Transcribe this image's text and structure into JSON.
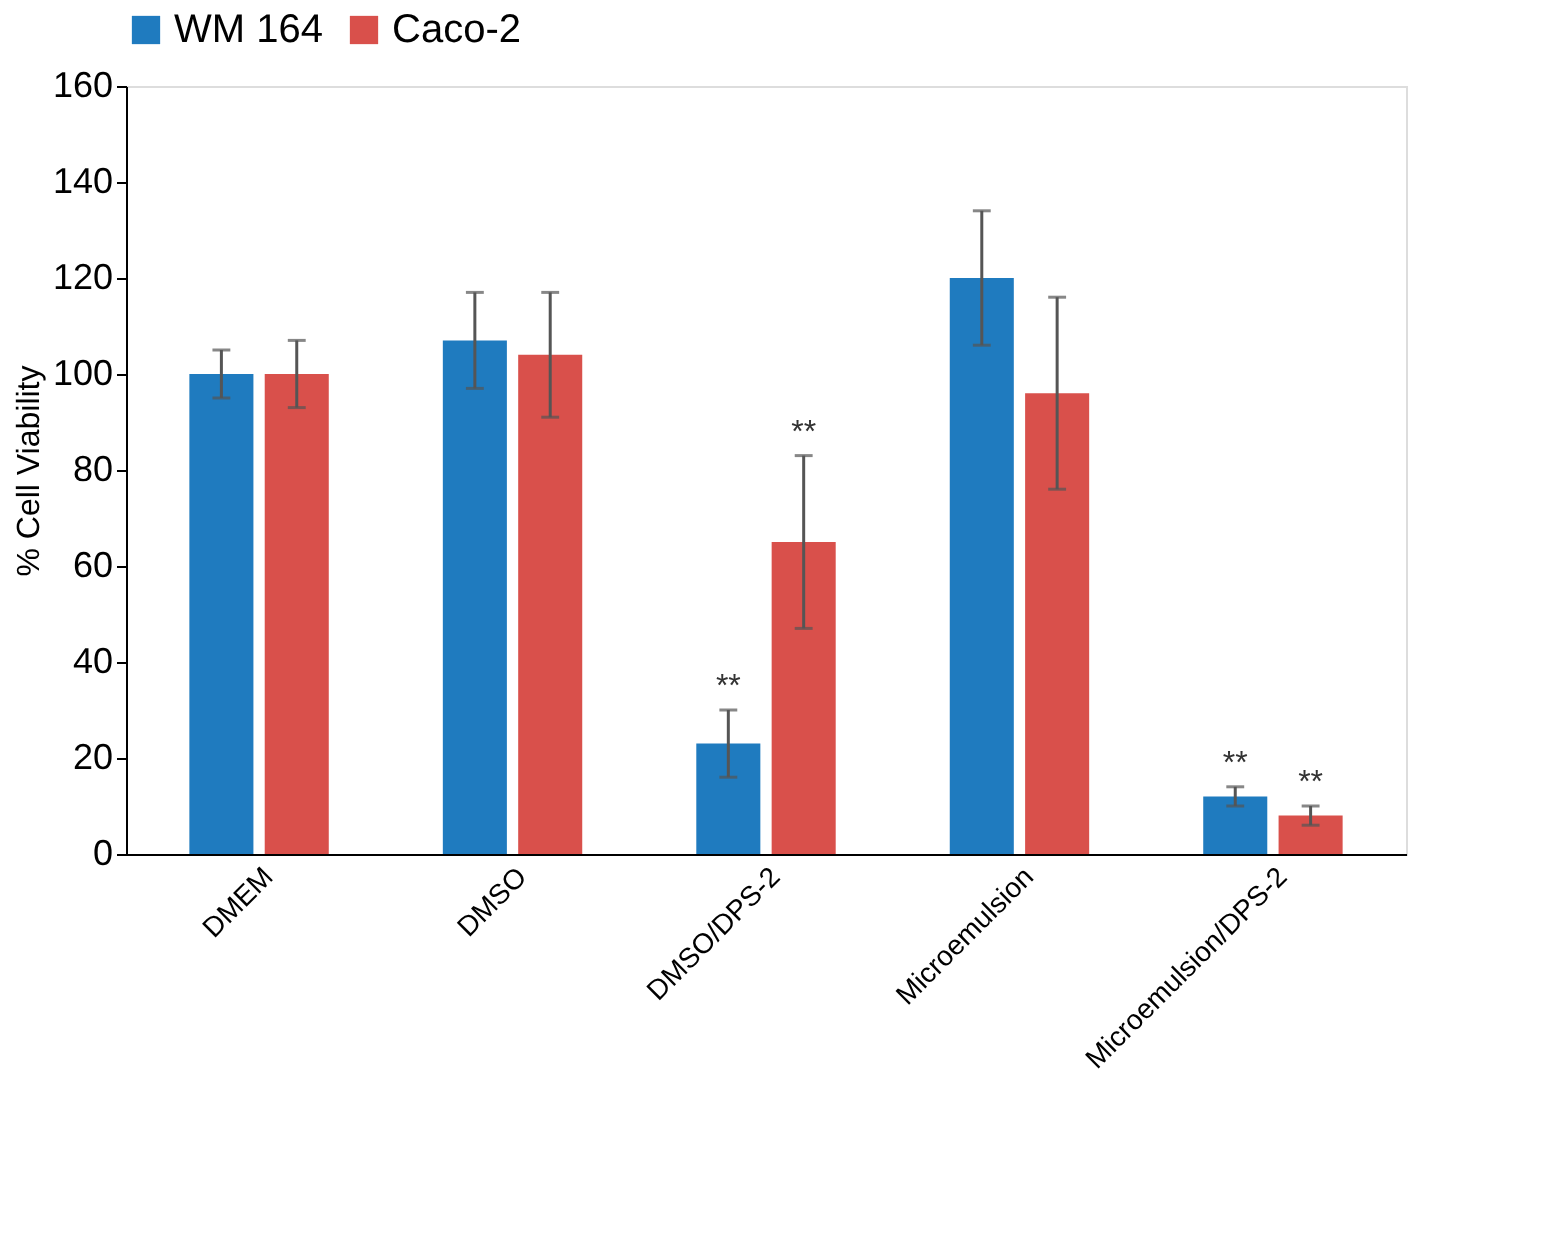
{
  "chart_data": {
    "type": "bar",
    "ylabel": "% Cell Viability",
    "categories": [
      "DMEM",
      "DMSO",
      "DMSO/DPS-2",
      "Microemulsion",
      "Microemulsion/DPS-2"
    ],
    "series": [
      {
        "name": "WM 164",
        "color": "#1f7bbf",
        "values": [
          100,
          107,
          23,
          120,
          12
        ],
        "errors": [
          5,
          10,
          7,
          14,
          2
        ],
        "value_labels": [
          null,
          null,
          "**",
          null,
          "**"
        ]
      },
      {
        "name": "Caco-2",
        "color": "#d9504b",
        "values": [
          100,
          104,
          65,
          96,
          8
        ],
        "errors": [
          7,
          13,
          18,
          20,
          2
        ],
        "value_labels": [
          null,
          null,
          "**",
          null,
          "**"
        ]
      }
    ],
    "ylim": [
      0,
      160
    ],
    "yticks": [
      0,
      20,
      40,
      60,
      80,
      100,
      120,
      140,
      160
    ],
    "grid": false,
    "legend": "top"
  }
}
